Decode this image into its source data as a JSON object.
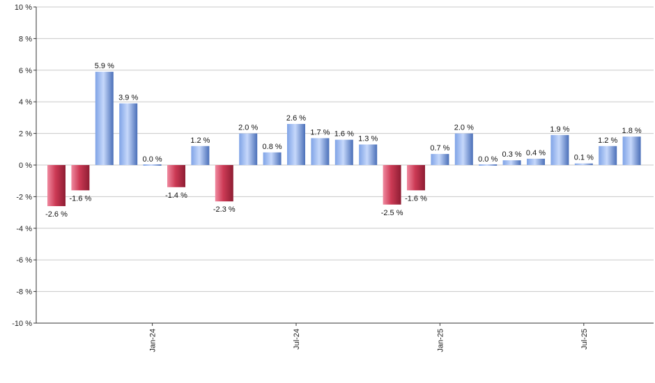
{
  "chart_data": {
    "type": "bar",
    "title": "",
    "xlabel": "",
    "ylabel": "",
    "ylim": [
      -10,
      10
    ],
    "y_ticks": [
      10,
      8,
      6,
      4,
      2,
      0,
      -2,
      -4,
      -6,
      -8,
      -10
    ],
    "y_tick_suffix": " %",
    "grid": true,
    "x_tick_labels": [
      {
        "label": "Jan-24",
        "index": 4
      },
      {
        "label": "Jul-24",
        "index": 10
      },
      {
        "label": "Jan-25",
        "index": 16
      },
      {
        "label": "Jul-25",
        "index": 22
      }
    ],
    "values": [
      -2.6,
      -1.6,
      5.9,
      3.9,
      0.0,
      -1.4,
      1.2,
      -2.3,
      2.0,
      0.8,
      2.6,
      1.7,
      1.6,
      1.3,
      -2.5,
      -1.6,
      0.7,
      2.0,
      0.0,
      0.3,
      0.4,
      1.9,
      0.1,
      1.2,
      1.8
    ],
    "data_labels": [
      "-2.6 %",
      "-1.6 %",
      "5.9 %",
      "3.9 %",
      "0.0 %",
      "-1.4 %",
      "1.2 %",
      "-2.3 %",
      "2.0 %",
      "0.8 %",
      "2.6 %",
      "1.7 %",
      "1.6 %",
      "1.3 %",
      "-2.5 %",
      "-1.6 %",
      "0.7 %",
      "2.0 %",
      "0.0 %",
      "0.3 %",
      "0.4 %",
      "1.9 %",
      "0.1 %",
      "1.2 %",
      "1.8 %"
    ],
    "colors": {
      "positive": "#7fa3e6",
      "positive_light": "#c6d8fb",
      "positive_dark": "#4a6fb8",
      "negative": "#cc3a55",
      "negative_light": "#f08aa0",
      "negative_dark": "#8e1d33",
      "grid": "#c8c8c8",
      "axis": "#333333"
    }
  }
}
